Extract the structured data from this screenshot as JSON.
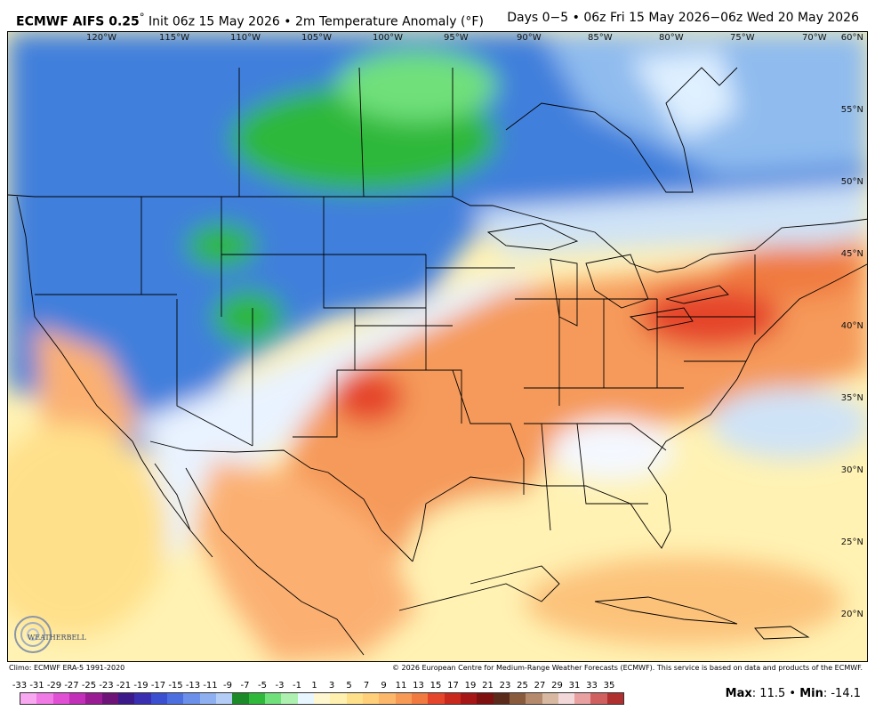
{
  "header": {
    "model": "ECMWF AIFS 0.25",
    "degree": "°",
    "init": "Init 06z 15 May 2026",
    "sep1": "•",
    "variable": "2m Temperature Anomaly (°F)",
    "valid": "Days 0−5 • 06z Fri 15 May 2026−06z Wed 20 May 2026"
  },
  "map": {
    "longitudes": [
      "120°W",
      "115°W",
      "110°W",
      "105°W",
      "100°W",
      "95°W",
      "90°W",
      "85°W",
      "80°W",
      "75°W",
      "70°W"
    ],
    "latitudes": [
      "60°N",
      "55°N",
      "50°N",
      "45°N",
      "40°N",
      "35°N",
      "30°N",
      "25°N",
      "20°N"
    ],
    "logo_text": "WEATHERBELL",
    "colors": {
      "cold_blue": "#2f6fd6",
      "cool_blue": "#6aa0e6",
      "light_blue": "#bcd7f2",
      "green": "#2fb83a",
      "light_green": "#6fe07a",
      "pale": "#eef6ff",
      "pale_yellow": "#fff2b3",
      "yellow": "#ffe08a",
      "orange": "#fbb072",
      "dark_orange": "#f07a40",
      "red": "#e5452a"
    }
  },
  "footer": {
    "climo": "Climo: ECMWF ERA-5 1991-2020",
    "copyright": "© 2026 European Centre for Medium-Range Weather Forecasts (ECMWF). This service is based on data and products of the ECMWF.",
    "scale_labels": [
      "-33",
      "-31",
      "-29",
      "-27",
      "-25",
      "-23",
      "-21",
      "-19",
      "-17",
      "-15",
      "-13",
      "-11",
      "-9",
      "-7",
      "-5",
      "-3",
      "-1",
      "1",
      "3",
      "5",
      "7",
      "9",
      "11",
      "13",
      "15",
      "17",
      "19",
      "21",
      "23",
      "25",
      "27",
      "29",
      "31",
      "33",
      "35"
    ],
    "scale_colors": [
      "#f7a8f0",
      "#f07ae6",
      "#e04fd4",
      "#c22fb8",
      "#9a1c95",
      "#6e1478",
      "#3c1a8a",
      "#3a2fb0",
      "#3b4fd1",
      "#4c6fe0",
      "#6b90ea",
      "#8fb0f0",
      "#b3cdf6",
      "#1d8a2a",
      "#2fb83a",
      "#6fe07a",
      "#aef0b0",
      "#e8f6ff",
      "#fff7d0",
      "#fff0b0",
      "#ffe08a",
      "#ffcf7a",
      "#fdb76a",
      "#f79a55",
      "#f07a40",
      "#e5452a",
      "#c9281c",
      "#a61616",
      "#7e1010",
      "#5c2a1a",
      "#8a5a3c",
      "#b58a6c",
      "#d8b8a0",
      "#f2d8d8",
      "#e8a0a0",
      "#d06060",
      "#b03030"
    ],
    "max_label": "Max",
    "max_value": ": 11.5 •",
    "min_label": "Min",
    "min_value": ": -14.1"
  }
}
